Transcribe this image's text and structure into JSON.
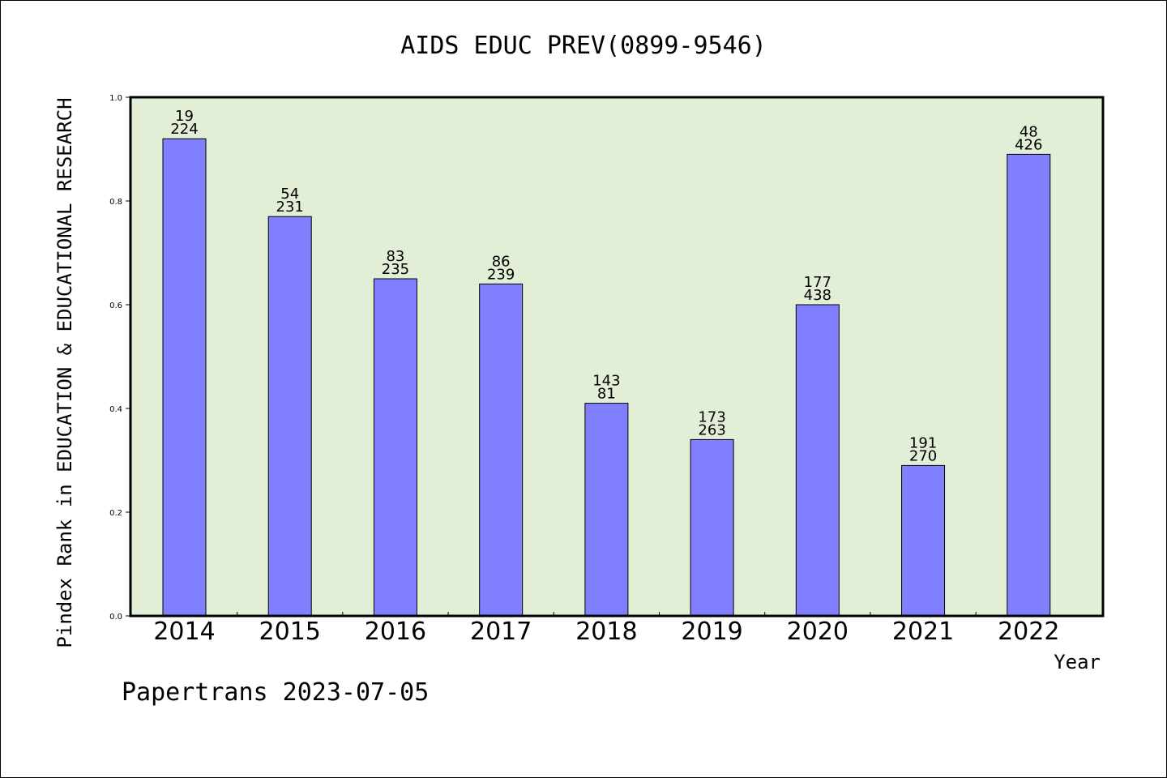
{
  "chart_data": {
    "type": "bar",
    "title": "AIDS EDUC PREV(0899-9546)",
    "xlabel": "Year",
    "ylabel": "Pindex Rank in EDUCATION & EDUCATIONAL RESEARCH",
    "ylim": [
      0,
      1.0
    ],
    "yticks": [
      "0.0",
      "0.2",
      "0.4",
      "0.6",
      "0.8",
      "1.0"
    ],
    "categories": [
      "2014",
      "2015",
      "2016",
      "2017",
      "2018",
      "2019",
      "2020",
      "2021",
      "2022"
    ],
    "values": [
      0.92,
      0.77,
      0.65,
      0.64,
      0.41,
      0.34,
      0.6,
      0.29,
      0.89
    ],
    "label_top": [
      "19",
      "54",
      "83",
      "86",
      "143",
      "173",
      "177",
      "191",
      "48"
    ],
    "label_bottom": [
      "224",
      "231",
      "235",
      "239",
      "81",
      "263",
      "438",
      "270",
      "426"
    ],
    "bar_color": "#8080ff",
    "plot_background": "#e2efd6",
    "grid": false
  },
  "footer": "Papertrans 2023-07-05"
}
